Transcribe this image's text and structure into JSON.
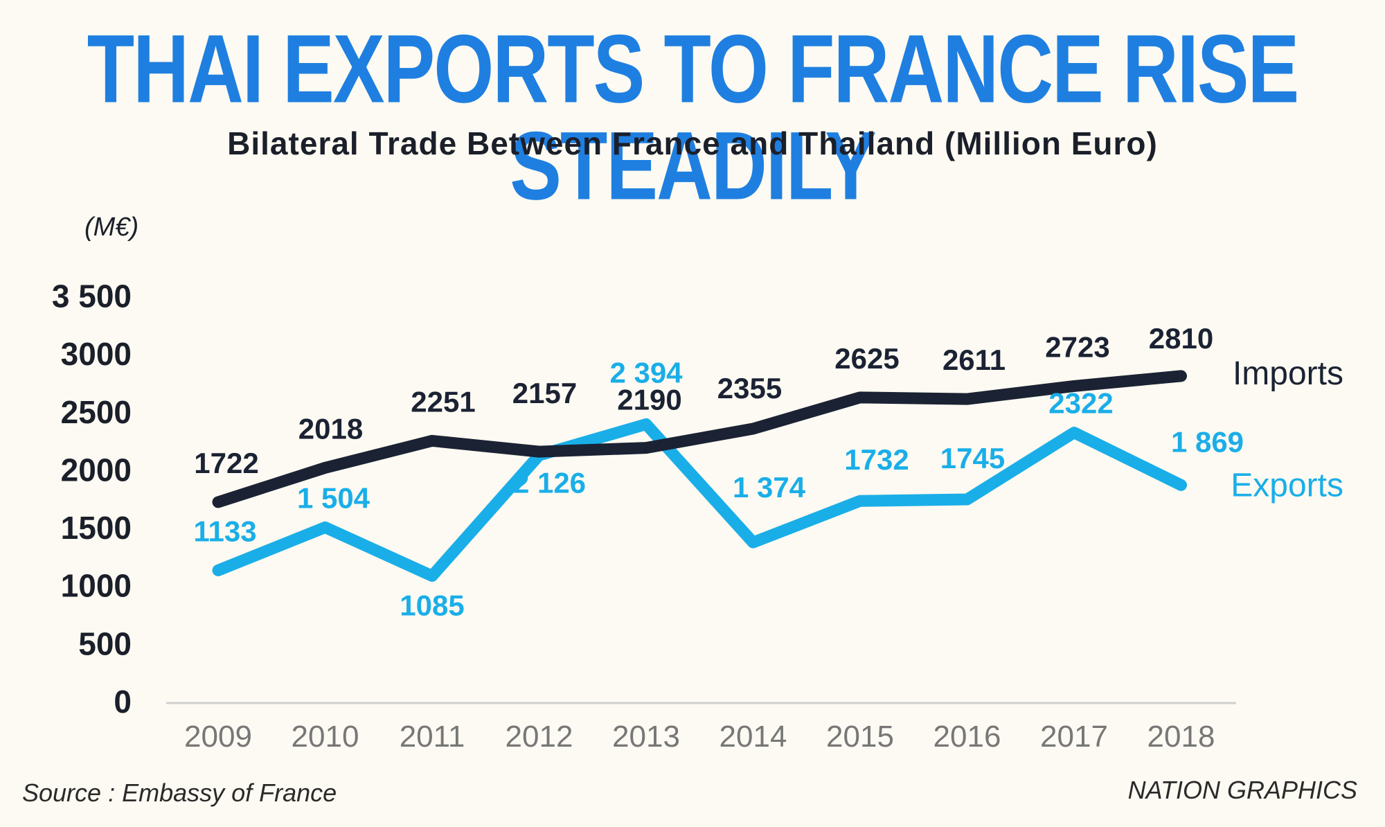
{
  "header": {
    "title": "THAI EXPORTS TO FRANCE RISE STEADILY",
    "subtitle": "Bilateral Trade Between France and Thailand (Million Euro)"
  },
  "footer": {
    "source": "Source : Embassy of France",
    "credit": "NATION GRAPHICS"
  },
  "colors": {
    "title": "#1f7fe0",
    "imports": "#1b2233",
    "exports": "#1aaee8",
    "axis": "#cfcfcf"
  },
  "chart_data": {
    "type": "line",
    "title": "Bilateral Trade Between France and Thailand (Million Euro)",
    "unit_label": "(M€)",
    "x": [
      "2009",
      "2010",
      "2011",
      "2012",
      "2013",
      "2014",
      "2015",
      "2016",
      "2017",
      "2018"
    ],
    "ylim": [
      0,
      3500
    ],
    "yticks": [
      0,
      500,
      1000,
      1500,
      2000,
      2500,
      3000,
      3500
    ],
    "ytick_labels": [
      "0",
      "500",
      "1000",
      "1500",
      "2000",
      "2500",
      "3000",
      "3 500"
    ],
    "grid": false,
    "series": [
      {
        "name": "Imports",
        "color": "#1b2233",
        "values": [
          1722,
          2018,
          2251,
          2157,
          2190,
          2355,
          2625,
          2611,
          2723,
          2810
        ],
        "labels": [
          "1722",
          "2018",
          "2251",
          "2157",
          "2190",
          "2355",
          "2625",
          "2611",
          "2723",
          "2810"
        ]
      },
      {
        "name": "Exports",
        "color": "#1aaee8",
        "values": [
          1133,
          1504,
          1085,
          2126,
          2394,
          1374,
          1732,
          1745,
          2322,
          1869
        ],
        "labels": [
          "1133",
          "1 504",
          "1085",
          "2 126",
          "2 394",
          "1 374",
          "1732",
          "1745",
          "2322",
          "1 869"
        ]
      }
    ]
  }
}
